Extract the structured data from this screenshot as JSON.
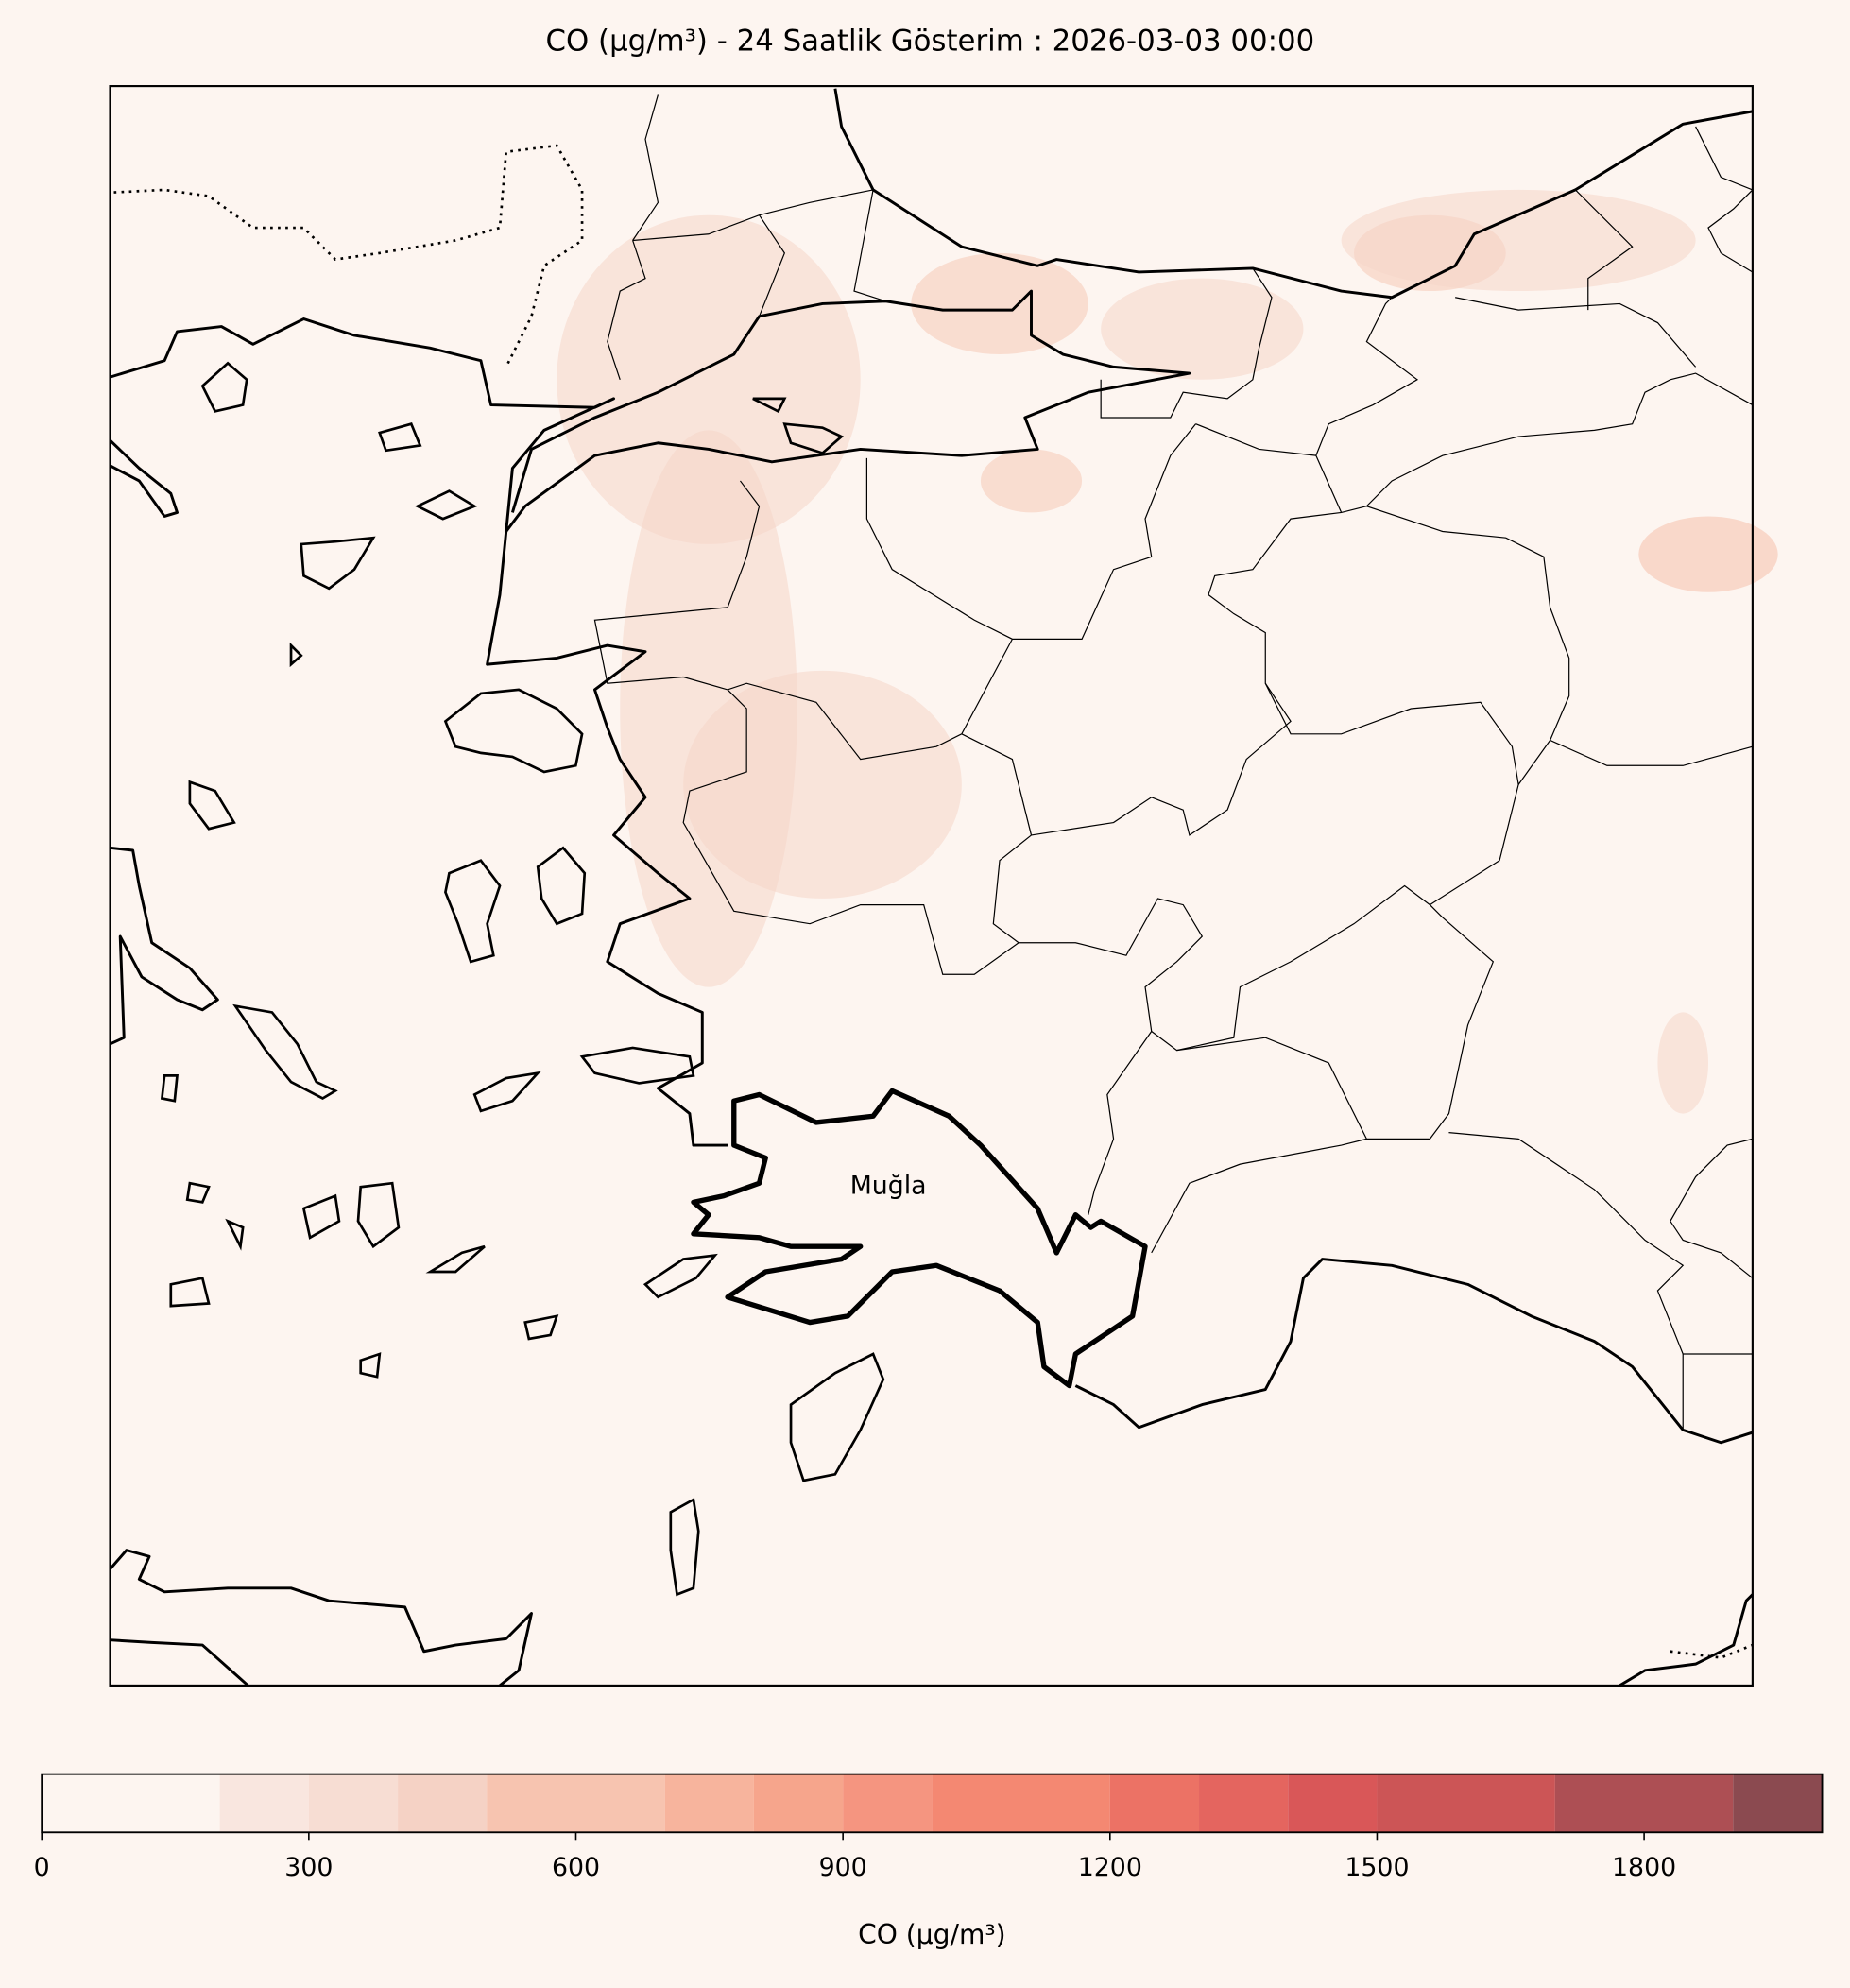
{
  "map": {
    "title": "CO (µg/m³) - 24 Saatlik Gösterim : 2026-03-03 00:00",
    "labels": [
      "Muğla"
    ]
  },
  "colorbar": {
    "label": "CO (µg/m³)",
    "lim": [
      0,
      2000
    ],
    "bounds": [
      0,
      200,
      300,
      400,
      500,
      700,
      800,
      900,
      1000,
      1200,
      1300,
      1400,
      1500,
      1700,
      1900,
      2000
    ],
    "colors": [
      "#fdf5f0",
      "#f9e6df",
      "#f7ddd3",
      "#f5d2c5",
      "#f7c4b0",
      "#f7b49d",
      "#f6a58c",
      "#f59580",
      "#f48872",
      "#ec7265",
      "#e4655f",
      "#d95758",
      "#cc5556",
      "#ad4f54",
      "#8b4a50"
    ],
    "ticks": [
      0,
      300,
      600,
      900,
      1200,
      1500,
      1800
    ]
  }
}
